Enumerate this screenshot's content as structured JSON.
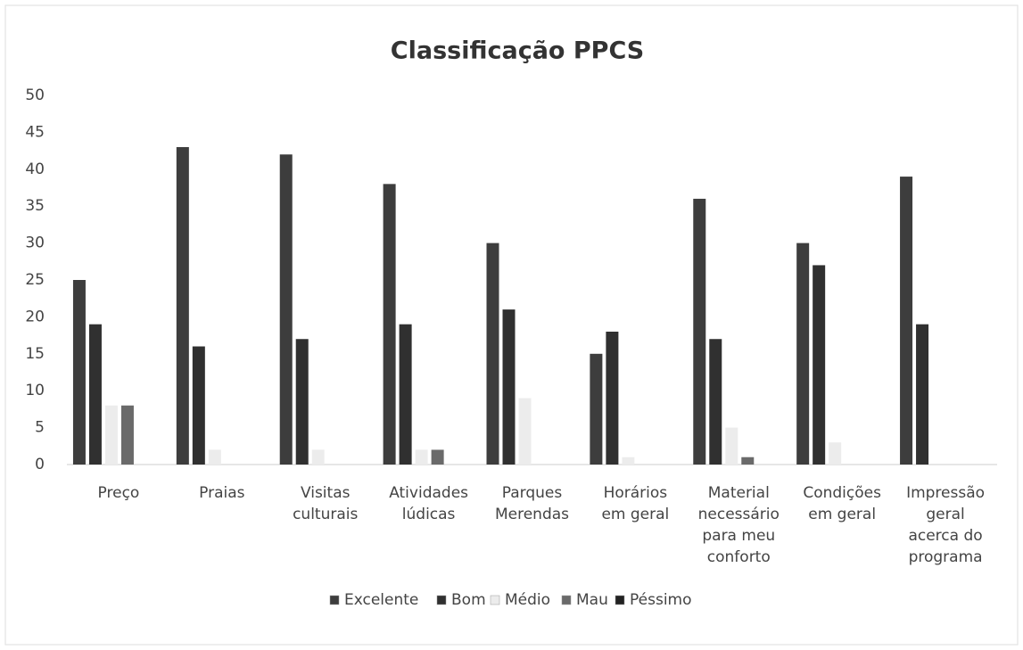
{
  "chart_data": {
    "type": "bar",
    "title": "Classificação PPCS",
    "categories": [
      "Preço",
      "Praias",
      "Visitas culturais",
      "Atividades lúdicas",
      "Parques Merendas",
      "Horários em geral",
      "Material necessário para meu conforto",
      "Condições em geral",
      "Impressão geral acerca do programa"
    ],
    "series": [
      {
        "name": "Excelente",
        "color": "#3d3d3d",
        "values": [
          25,
          43,
          42,
          38,
          30,
          15,
          36,
          30,
          39
        ]
      },
      {
        "name": "Bom",
        "color": "#303030",
        "values": [
          19,
          16,
          17,
          19,
          21,
          18,
          17,
          27,
          19
        ]
      },
      {
        "name": "Médio",
        "color": "#ececec",
        "values": [
          8,
          2,
          2,
          2,
          9,
          1,
          5,
          3,
          0
        ]
      },
      {
        "name": "Mau",
        "color": "#6a6a6a",
        "values": [
          8,
          0,
          0,
          2,
          0,
          0,
          1,
          0,
          0
        ]
      },
      {
        "name": "Péssimo",
        "color": "#222222",
        "values": [
          0,
          0,
          0,
          0,
          0,
          0,
          0,
          0,
          0
        ]
      }
    ],
    "ylim": [
      0,
      50
    ],
    "yticks": [
      0,
      5,
      10,
      15,
      20,
      25,
      30,
      35,
      40,
      45,
      50
    ],
    "grid": false,
    "legend": "bottom"
  }
}
